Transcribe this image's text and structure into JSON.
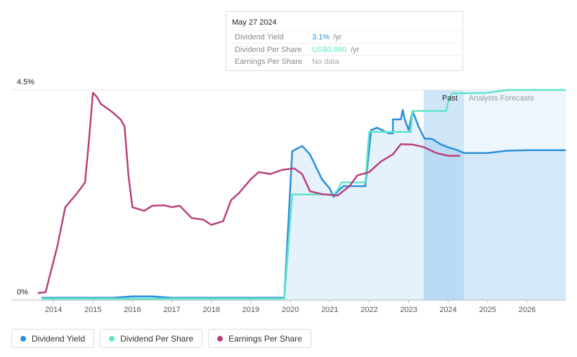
{
  "chart_data": {
    "type": "line",
    "xlim": [
      2012.93,
      2026.98
    ],
    "ylim": [
      0,
      4.5
    ],
    "xticks": [
      2014,
      2015,
      2016,
      2017,
      2018,
      2019,
      2020,
      2021,
      2022,
      2023,
      2024,
      2025,
      2026
    ],
    "yticks": [
      {
        "value": 0,
        "label": "0%"
      },
      {
        "value": 4.5,
        "label": "4.5%"
      }
    ],
    "grid": true,
    "highlight": [
      2023.38,
      2024.4
    ],
    "annotations": {
      "past": "Past",
      "forecast": "Analysts Forecasts"
    },
    "tooltip": {
      "date": "May 27 2024",
      "rows": [
        [
          "Dividend Yield",
          "3.1%",
          "/yr"
        ],
        [
          "Dividend Per Share",
          "US$0.980",
          "/yr"
        ],
        [
          "Earnings Per Share",
          "No data"
        ]
      ]
    },
    "series": [
      {
        "name": "Dividend Yield",
        "color": "#2b8fdb",
        "area": true,
        "x": [
          2013.7,
          2015.5,
          2016.0,
          2016.5,
          2017.0,
          2019.85,
          2020.05,
          2020.3,
          2020.5,
          2020.8,
          2021.0,
          2021.1,
          2021.2,
          2021.35,
          2021.9,
          2022.05,
          2022.2,
          2022.5,
          2022.6,
          2022.6,
          2022.8,
          2022.85,
          2022.9,
          2023.0,
          2023.1,
          2023.25,
          2023.4,
          2023.6,
          2023.8,
          2024.0,
          2024.2,
          2024.4,
          2025.0,
          2025.5,
          2026.0,
          2026.98
        ],
        "values": [
          0.05,
          0.05,
          0.08,
          0.08,
          0.05,
          0.05,
          3.19,
          3.3,
          3.12,
          2.59,
          2.39,
          2.21,
          2.33,
          2.44,
          2.44,
          3.64,
          3.69,
          3.57,
          3.57,
          3.87,
          3.87,
          4.07,
          3.87,
          3.64,
          4.05,
          3.72,
          3.46,
          3.45,
          3.34,
          3.27,
          3.22,
          3.15,
          3.15,
          3.2,
          3.21,
          3.21
        ]
      },
      {
        "name": "Dividend Per Share",
        "color": "#5ee5c9",
        "x": [
          2013.7,
          2019.85,
          2020.05,
          2021.1,
          2021.2,
          2021.3,
          2021.9,
          2022.0,
          2023.05,
          2023.1,
          2023.95,
          2024.0,
          2024.1,
          2024.4,
          2025.0,
          2025.5,
          2026.98
        ],
        "values": [
          0.03,
          0.03,
          2.26,
          2.26,
          2.36,
          2.52,
          2.52,
          3.6,
          3.6,
          4.05,
          4.05,
          4.25,
          4.43,
          4.43,
          4.44,
          4.5,
          4.5
        ]
      },
      {
        "name": "Earnings Per Share",
        "color": "#b9407c",
        "x": [
          2013.6,
          2013.8,
          2014.1,
          2014.3,
          2014.6,
          2014.8,
          2014.9,
          2015.0,
          2015.1,
          2015.2,
          2015.5,
          2015.7,
          2015.8,
          2015.9,
          2016.0,
          2016.3,
          2016.5,
          2016.8,
          2017.0,
          2017.2,
          2017.5,
          2017.8,
          2018.0,
          2018.3,
          2018.5,
          2018.7,
          2019.0,
          2019.2,
          2019.5,
          2019.8,
          2020.1,
          2020.3,
          2020.5,
          2020.8,
          2021.2,
          2021.5,
          2021.7,
          2022.0,
          2022.3,
          2022.6,
          2022.8,
          2023.1,
          2023.4,
          2023.7,
          2024.0,
          2024.3
        ],
        "values": [
          0.15,
          0.17,
          1.16,
          1.99,
          2.29,
          2.52,
          3.42,
          4.44,
          4.35,
          4.2,
          4.02,
          3.87,
          3.72,
          2.67,
          1.99,
          1.91,
          2.02,
          2.03,
          1.99,
          2.02,
          1.76,
          1.72,
          1.61,
          1.69,
          2.14,
          2.29,
          2.59,
          2.74,
          2.7,
          2.79,
          2.82,
          2.7,
          2.33,
          2.27,
          2.24,
          2.44,
          2.67,
          2.74,
          2.97,
          3.12,
          3.34,
          3.33,
          3.27,
          3.15,
          3.09,
          3.09
        ]
      }
    ]
  }
}
